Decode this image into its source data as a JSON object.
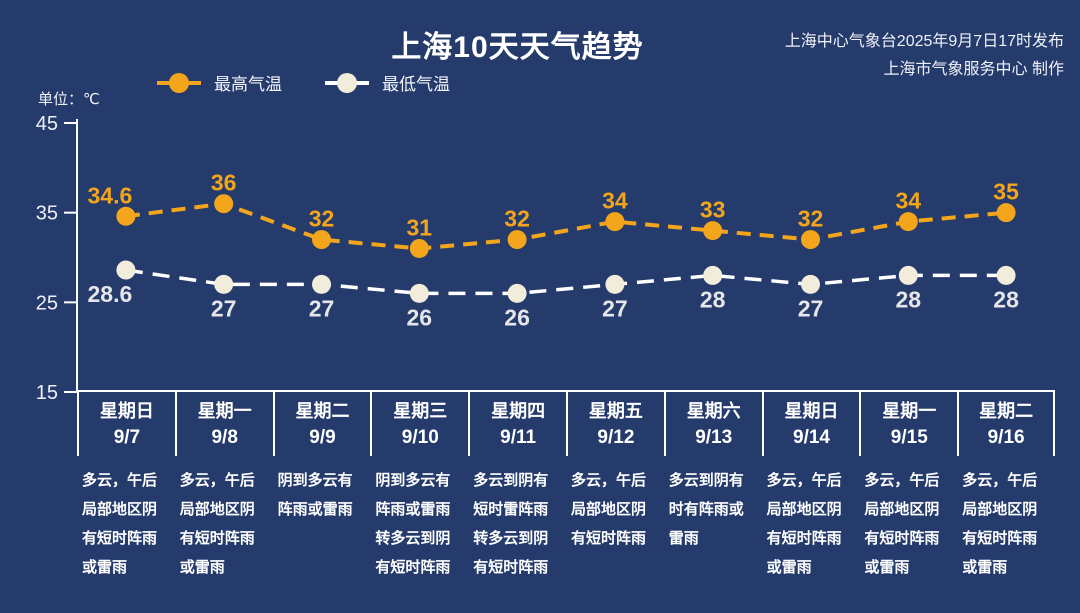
{
  "header": {
    "title": "上海10天天气趋势",
    "issued_line1": "上海中心气象台2025年9月7日17时发布",
    "issued_line2": "上海市气象服务中心 制作",
    "unit_label": "单位：℃"
  },
  "legend": [
    {
      "label": "最高气温",
      "color": "#f3a51b"
    },
    {
      "label": "最低气温",
      "color": "#f2ecda"
    }
  ],
  "chart_data": {
    "type": "line",
    "x": [
      "9/7",
      "9/8",
      "9/9",
      "9/10",
      "9/11",
      "9/12",
      "9/13",
      "9/14",
      "9/15",
      "9/16"
    ],
    "series": [
      {
        "name": "最高气温",
        "color": "#f3a51b",
        "label_color": "#f3a51b",
        "values": [
          34.6,
          36,
          32,
          31,
          32,
          34,
          33,
          32,
          34,
          35
        ]
      },
      {
        "name": "最低气温",
        "color": "#ffffff",
        "marker_color": "#f2ecda",
        "label_color": "#e6e6ea",
        "values": [
          28.6,
          27,
          27,
          26,
          26,
          27,
          28,
          27,
          28,
          28
        ]
      }
    ],
    "title": "上海10天天气趋势",
    "ylabel": "单位：℃",
    "ylim": [
      15,
      45
    ],
    "yticks": [
      45,
      35,
      25,
      15
    ],
    "grid": false,
    "legend_position": "top",
    "line_style": "dashed"
  },
  "days": [
    {
      "weekday": "星期日",
      "date": "9/7",
      "desc": [
        "多云，午后",
        "局部地区阴",
        "有短时阵雨",
        "或雷雨"
      ]
    },
    {
      "weekday": "星期一",
      "date": "9/8",
      "desc": [
        "多云，午后",
        "局部地区阴",
        "有短时阵雨",
        "或雷雨"
      ]
    },
    {
      "weekday": "星期二",
      "date": "9/9",
      "desc": [
        "阴到多云有",
        "阵雨或雷雨"
      ]
    },
    {
      "weekday": "星期三",
      "date": "9/10",
      "desc": [
        "阴到多云有",
        "阵雨或雷雨",
        "转多云到阴",
        "有短时阵雨"
      ]
    },
    {
      "weekday": "星期四",
      "date": "9/11",
      "desc": [
        "多云到阴有",
        "短时雷阵雨",
        "转多云到阴",
        "有短时阵雨"
      ]
    },
    {
      "weekday": "星期五",
      "date": "9/12",
      "desc": [
        "多云，午后",
        "局部地区阴",
        "有短时阵雨"
      ]
    },
    {
      "weekday": "星期六",
      "date": "9/13",
      "desc": [
        "多云到阴有",
        "时有阵雨或",
        "雷雨"
      ]
    },
    {
      "weekday": "星期日",
      "date": "9/14",
      "desc": [
        "多云，午后",
        "局部地区阴",
        "有短时阵雨",
        "或雷雨"
      ]
    },
    {
      "weekday": "星期一",
      "date": "9/15",
      "desc": [
        "多云，午后",
        "局部地区阴",
        "有短时阵雨",
        "或雷雨"
      ]
    },
    {
      "weekday": "星期二",
      "date": "9/16",
      "desc": [
        "多云，午后",
        "局部地区阴",
        "有短时阵雨",
        "或雷雨"
      ]
    }
  ]
}
